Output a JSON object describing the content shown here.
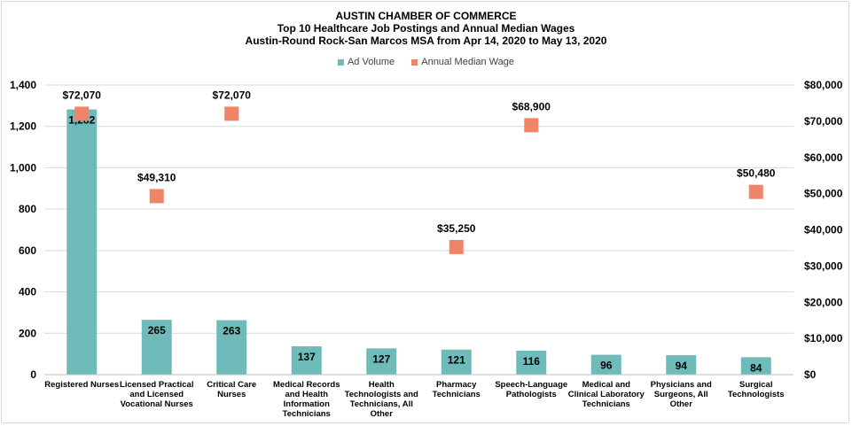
{
  "title_lines": [
    "AUSTIN CHAMBER  OF  COMMERCE",
    "Top 10 Healthcare Job Postings and Annual Median Wages",
    "Austin-Round  Rock-San Marcos MSA from Apr 14, 2020 to May 13, 2020"
  ],
  "legend": [
    {
      "label": "Ad Volume",
      "color": "#6fbbb9"
    },
    {
      "label": "Annual Median Wage",
      "color": "#f08468"
    }
  ],
  "chart_data": {
    "type": "bar",
    "categories": [
      [
        "Registered Nurses"
      ],
      [
        "Licensed Practical",
        "and Licensed",
        "Vocational Nurses"
      ],
      [
        "Critical Care",
        "Nurses"
      ],
      [
        "Medical Records",
        "and Health",
        "Information",
        "Technicians"
      ],
      [
        "Health",
        "Technologists and",
        "Technicians, All",
        "Other"
      ],
      [
        "Pharmacy",
        "Technicians"
      ],
      [
        "Speech-Language",
        "Pathologists"
      ],
      [
        "Medical and",
        "Clinical Laboratory",
        "Technicians"
      ],
      [
        "Physicians and",
        "Surgeons, All",
        "Other"
      ],
      [
        "Surgical",
        "Technologists"
      ]
    ],
    "series": [
      {
        "name": "Ad Volume",
        "kind": "bar",
        "axis": "left",
        "color": "#6fbbb9",
        "values": [
          1282,
          265,
          263,
          137,
          127,
          121,
          116,
          96,
          94,
          84
        ],
        "labels": [
          "1,282",
          "265",
          "263",
          "137",
          "127",
          "121",
          "116",
          "96",
          "94",
          "84"
        ]
      },
      {
        "name": "Annual Median Wage",
        "kind": "marker",
        "axis": "right",
        "color": "#f08468",
        "values": [
          72070,
          49310,
          72070,
          null,
          null,
          35250,
          68900,
          null,
          null,
          50480
        ],
        "labels": [
          "$72,070",
          "$49,310",
          "$72,070",
          "",
          "",
          "$35,250",
          "$68,900",
          "",
          "",
          "$50,480"
        ]
      }
    ],
    "y_left": {
      "lim": [
        0,
        1400
      ],
      "ticks": [
        0,
        200,
        400,
        600,
        800,
        1000,
        1200,
        1400
      ],
      "tick_labels": [
        "0",
        "200",
        "400",
        "600",
        "800",
        "1,000",
        "1,200",
        "1,400"
      ]
    },
    "y_right": {
      "lim": [
        0,
        80000
      ],
      "ticks": [
        0,
        10000,
        20000,
        30000,
        40000,
        50000,
        60000,
        70000,
        80000
      ],
      "tick_labels": [
        "$0",
        "$10,000",
        "$20,000",
        "$30,000",
        "$40,000",
        "$50,000",
        "$60,000",
        "$70,000",
        "$80,000"
      ]
    },
    "grid": true,
    "legend_position": "top"
  }
}
